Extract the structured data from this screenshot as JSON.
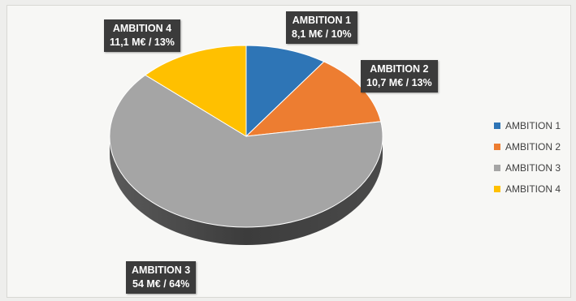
{
  "chart_data": {
    "type": "pie",
    "title": "",
    "categories": [
      "AMBITION 1",
      "AMBITION 2",
      "AMBITION 3",
      "AMBITION 4"
    ],
    "values": [
      8.1,
      10.7,
      54,
      11.1
    ],
    "percentages": [
      10,
      13,
      64,
      13
    ],
    "unit": "M€",
    "colors": [
      "#2e75b6",
      "#ed7d31",
      "#a5a5a5",
      "#ffc000"
    ],
    "data_labels": [
      {
        "name": "AMBITION 1",
        "value": "8,1 M€ / 10%"
      },
      {
        "name": "AMBITION 2",
        "value": "10,7 M€ / 13%"
      },
      {
        "name": "AMBITION 3",
        "value": "54 M€ / 64%"
      },
      {
        "name": "AMBITION 4",
        "value": "11,1 M€ / 13%"
      }
    ],
    "legend": {
      "placement": "right",
      "entries": [
        "AMBITION 1",
        "AMBITION 2",
        "AMBITION 3",
        "AMBITION 4"
      ]
    },
    "style": "3d-pie"
  }
}
